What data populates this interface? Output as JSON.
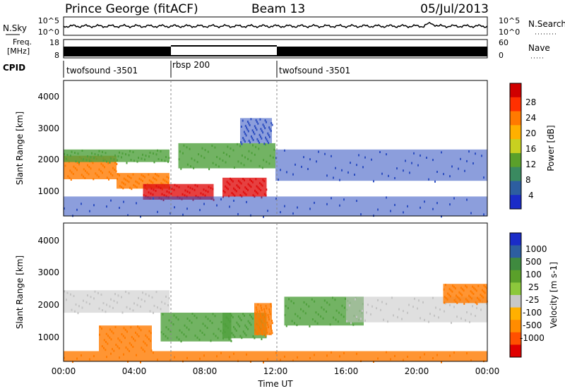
{
  "header": {
    "station": "Prince George (fitACF)",
    "beam": "Beam 13",
    "date": "05/Jul/2013"
  },
  "side_labels": {
    "nsky": "N.Sky",
    "nsearch": "N.Search",
    "freq": "Freq.",
    "mhz": "[MHz]",
    "nave": "Nave",
    "cpid": "CPID"
  },
  "noise_axis": {
    "left_ticks": [
      "10^5",
      "10^0"
    ],
    "right_ticks": [
      "10^5",
      "10^0"
    ]
  },
  "freq_axis": {
    "left_ticks": [
      "18",
      "8"
    ],
    "right_ticks": [
      "60",
      "0"
    ]
  },
  "cpid": [
    {
      "label": "twofsound -3501",
      "start_h": 0
    },
    {
      "label": "rbsp 200",
      "start_h": 6
    },
    {
      "label": "twofsound -3501",
      "start_h": 12
    }
  ],
  "axes": {
    "xlabel": "Time UT",
    "ylabel": "Slant Range [km]",
    "xticks": [
      "00:00",
      "04:00",
      "08:00",
      "12:00",
      "16:00",
      "20:00",
      "00:00"
    ],
    "yticks": [
      "1000",
      "2000",
      "3000",
      "4000"
    ]
  },
  "power_scale": {
    "label": "Power [dB]",
    "ticks": [
      "28",
      "24",
      "20",
      "16",
      "12",
      "8",
      "4"
    ],
    "colors": [
      "#d00000",
      "#ff3000",
      "#ff7a00",
      "#ffb000",
      "#c8d020",
      "#5aa02a",
      "#3a8a60",
      "#2d5ea0",
      "#1a2cc8"
    ]
  },
  "velocity_scale": {
    "label": "Velocity [m s-1]",
    "ticks": [
      "1000",
      "500",
      "100",
      "25",
      "-25",
      "-100",
      "-500",
      "-1000"
    ],
    "colors": [
      "#1a2cc8",
      "#2d5ea0",
      "#3f8a3f",
      "#5aa02a",
      "#8cc83c",
      "#c8c8c8",
      "#ffb000",
      "#ff8c00",
      "#ff5000",
      "#e00000"
    ]
  },
  "chart_data": {
    "type": "heatmap",
    "x_range_hours": [
      0,
      24
    ],
    "y_range_km": [
      180,
      4500
    ],
    "power_regions": [
      {
        "t0": 0.0,
        "t1": 3.0,
        "r0": 1350,
        "r1": 2100,
        "level": "orange"
      },
      {
        "t0": 3.0,
        "t1": 6.0,
        "r0": 1050,
        "r1": 1550,
        "level": "orange"
      },
      {
        "t0": 4.5,
        "t1": 8.5,
        "r0": 700,
        "r1": 1200,
        "level": "red"
      },
      {
        "t0": 9.0,
        "t1": 11.5,
        "r0": 800,
        "r1": 1400,
        "level": "red"
      },
      {
        "t0": 0.0,
        "t1": 6.0,
        "r0": 1900,
        "r1": 2300,
        "level": "green"
      },
      {
        "t0": 6.5,
        "t1": 12.0,
        "r0": 1700,
        "r1": 2500,
        "level": "green"
      },
      {
        "t0": 10.0,
        "t1": 11.8,
        "r0": 2500,
        "r1": 3300,
        "level": "blue"
      },
      {
        "t0": 12.0,
        "t1": 24.0,
        "r0": 1300,
        "r1": 2300,
        "level": "blue"
      },
      {
        "t0": 0.0,
        "t1": 24.0,
        "r0": 180,
        "r1": 800,
        "level": "blue"
      }
    ],
    "velocity_regions": [
      {
        "t0": 0.0,
        "t1": 6.0,
        "r0": 1700,
        "r1": 2400,
        "level": "grey"
      },
      {
        "t0": 2.0,
        "t1": 5.0,
        "r0": 500,
        "r1": 1300,
        "level": "orange"
      },
      {
        "t0": 5.5,
        "t1": 9.5,
        "r0": 800,
        "r1": 1700,
        "level": "green"
      },
      {
        "t0": 9.0,
        "t1": 11.5,
        "r0": 900,
        "r1": 1700,
        "level": "green"
      },
      {
        "t0": 10.8,
        "t1": 11.8,
        "r0": 1000,
        "r1": 2000,
        "level": "orange"
      },
      {
        "t0": 12.5,
        "t1": 17.0,
        "r0": 1300,
        "r1": 2200,
        "level": "green"
      },
      {
        "t0": 16.0,
        "t1": 24.0,
        "r0": 1400,
        "r1": 2200,
        "level": "grey"
      },
      {
        "t0": 21.5,
        "t1": 24.0,
        "r0": 2000,
        "r1": 2600,
        "level": "orange"
      },
      {
        "t0": 0.0,
        "t1": 24.0,
        "r0": 180,
        "r1": 500,
        "level": "orange"
      }
    ]
  }
}
